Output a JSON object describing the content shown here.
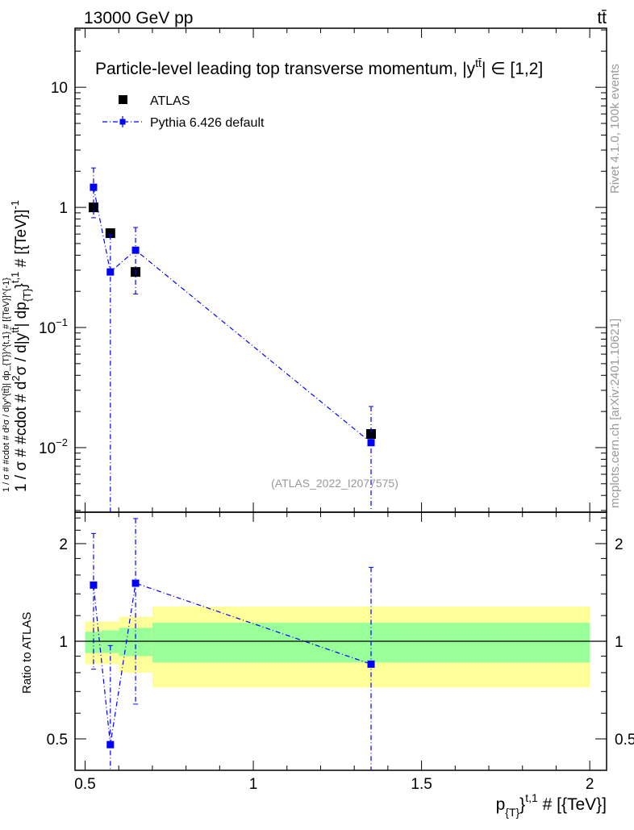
{
  "header": {
    "left": "13000 GeV pp",
    "right": "tt̄"
  },
  "side": {
    "rivet": "Rivet 4.1.0,  100k events",
    "mcplots": "mcplots.cern.ch [arXiv:2401.10621]"
  },
  "watermark": "(ATLAS_2022_I2077575)",
  "chart_data": [
    {
      "type": "scatter",
      "title": "Particle-level leading top transverse momentum, |y^{tt̄}| ∈ [1,2]",
      "title_main": "Particle-level leading top transverse momentum, |",
      "title_y": "y",
      "title_sup": "tt̄",
      "title_tail": "| ∈ [1,2]",
      "ylabel": "1 / σ # #cdot # d²σ / d|y^{tt̄}| dp_{T}}^{t,1} # [{TeV}]^{-1}",
      "ylabel_parts": [
        "1 / σ # #cdot # d",
        "2",
        "σ / d|y",
        "tt̄",
        "| dp",
        "{T}",
        "}",
        "t,1",
        " # [{TeV}]",
        "-1"
      ],
      "yscale": "log",
      "ylim": [
        0.0029,
        31
      ],
      "xlim": [
        0.47,
        2.05
      ],
      "yticks": [
        {
          "v": 10,
          "label": "10"
        },
        {
          "v": 1,
          "label": "1"
        },
        {
          "v": 0.1,
          "label": "10",
          "exp": "−1"
        },
        {
          "v": 0.01,
          "label": "10",
          "exp": "−2"
        }
      ],
      "legend": {
        "position": "top-left",
        "entries": [
          "ATLAS",
          "Pythia 6.426 default"
        ]
      },
      "colors": {
        "data": "#000000",
        "mc": "#0000ff"
      },
      "series": [
        {
          "name": "ATLAS",
          "x": [
            0.525,
            0.575,
            0.65,
            1.35
          ],
          "xerr": [
            [
              0.5,
              0.55
            ],
            [
              0.55,
              0.6
            ],
            [
              0.6,
              0.7
            ],
            [
              0.7,
              2.0
            ]
          ],
          "y": [
            1.0,
            0.61,
            0.29,
            0.013
          ]
        },
        {
          "name": "Pythia 6.426 default",
          "x": [
            0.525,
            0.575,
            0.65,
            1.35
          ],
          "y": [
            1.47,
            0.29,
            0.44,
            0.011
          ],
          "yerr_low": [
            0.82,
            0.001,
            0.19,
            0.001
          ],
          "yerr_high": [
            2.13,
            0.59,
            0.68,
            0.022
          ]
        }
      ]
    },
    {
      "type": "scatter",
      "ylabel": "Ratio to ATLAS",
      "xlabel": "p_{T}}^{t,1} # [{TeV}]",
      "xlabel_parts": [
        "p",
        "{T}",
        "}",
        "t,1",
        " # [{TeV}]"
      ],
      "yscale": "log",
      "ylim": [
        0.4,
        2.5
      ],
      "xlim": [
        0.47,
        2.05
      ],
      "xticks": [
        {
          "v": 0.5,
          "label": "0.5"
        },
        {
          "v": 1,
          "label": "1"
        },
        {
          "v": 1.5,
          "label": "1.5"
        },
        {
          "v": 2,
          "label": "2"
        }
      ],
      "yticks": [
        {
          "v": 0.5,
          "label": "0.5"
        },
        {
          "v": 1,
          "label": "1"
        },
        {
          "v": 2,
          "label": "2"
        }
      ],
      "bands": {
        "edges": [
          0.5,
          0.55,
          0.6,
          0.7,
          2.0
        ],
        "total_high": [
          1.15,
          1.15,
          1.19,
          1.28
        ],
        "total_low": [
          0.85,
          0.85,
          0.8,
          0.72
        ],
        "stat_high": [
          1.07,
          1.08,
          1.1,
          1.14
        ],
        "stat_low": [
          0.92,
          0.92,
          0.9,
          0.86
        ],
        "colors": {
          "total": "#ffff99",
          "stat": "#99ff99"
        }
      },
      "series": [
        {
          "name": "Pythia 6.426 default",
          "x": [
            0.525,
            0.575,
            0.65,
            1.35
          ],
          "y": [
            1.49,
            0.48,
            1.51,
            0.85
          ],
          "yerr_low": [
            0.82,
            0.1,
            0.64,
            0.1
          ],
          "yerr_high": [
            2.15,
            0.97,
            2.39,
            1.69
          ]
        }
      ]
    }
  ]
}
